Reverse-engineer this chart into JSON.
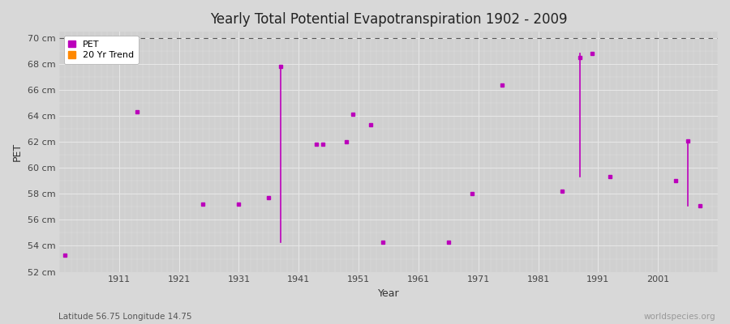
{
  "title": "Yearly Total Potential Evapotranspiration 1902 - 2009",
  "xlabel": "Year",
  "ylabel": "PET",
  "background_color": "#d8d8d8",
  "plot_bg_color": "#d0d0d0",
  "grid_color": "#e8e8e8",
  "ylim": [
    52,
    70.5
  ],
  "xlim": [
    1901,
    2011
  ],
  "ytick_labels": [
    "52 cm",
    "54 cm",
    "56 cm",
    "58 cm",
    "60 cm",
    "62 cm",
    "64 cm",
    "66 cm",
    "68 cm",
    "70 cm"
  ],
  "ytick_values": [
    52,
    54,
    56,
    58,
    60,
    62,
    64,
    66,
    68,
    70
  ],
  "xtick_values": [
    1911,
    1921,
    1931,
    1941,
    1951,
    1961,
    1971,
    1981,
    1991,
    2001
  ],
  "pet_color": "#bb00bb",
  "trend_color": "#ff8800",
  "dashed_line_y": 70,
  "subtitle": "Latitude 56.75 Longitude 14.75",
  "watermark": "worldspecies.org",
  "pet_data": [
    [
      1902,
      53.3
    ],
    [
      1914,
      64.3
    ],
    [
      1925,
      57.2
    ],
    [
      1931,
      57.2
    ],
    [
      1936,
      57.7
    ],
    [
      1938,
      67.8
    ],
    [
      1944,
      61.8
    ],
    [
      1945,
      61.8
    ],
    [
      1949,
      62.0
    ],
    [
      1950,
      64.1
    ],
    [
      1953,
      63.3
    ],
    [
      1955,
      54.3
    ],
    [
      1966,
      54.3
    ],
    [
      1970,
      58.0
    ],
    [
      1975,
      66.4
    ],
    [
      1985,
      58.2
    ],
    [
      1988,
      68.5
    ],
    [
      1990,
      68.8
    ],
    [
      1993,
      59.3
    ],
    [
      2004,
      59.0
    ],
    [
      2006,
      62.1
    ],
    [
      2008,
      57.1
    ]
  ],
  "vline_segments": [
    [
      1938,
      67.8,
      54.3
    ],
    [
      1988,
      68.8,
      59.3
    ],
    [
      2006,
      62.1,
      57.1
    ]
  ]
}
